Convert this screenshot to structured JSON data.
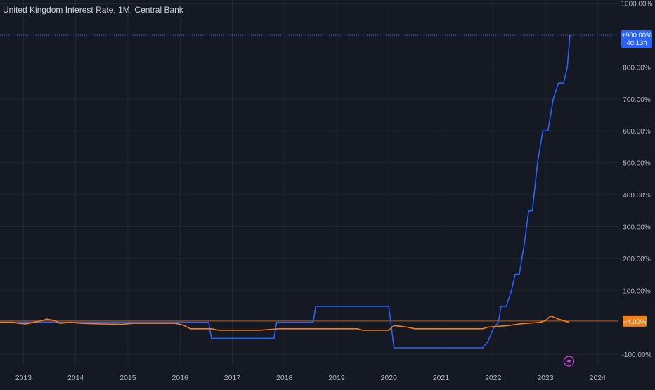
{
  "header": {
    "title": "United Kingdom Interest Rate, 1M, Central Bank"
  },
  "price_labels": {
    "top_value": "+900.00%",
    "top_countdown": "4d 13h",
    "baseline_value": "+4.00%"
  },
  "colors": {
    "background": "#151924",
    "grid": "#222631",
    "axis_text": "#b2b5be",
    "blue_series": "#2962ff",
    "orange_series": "#f57f17",
    "baseline": "#f57f17",
    "event_icon": "#d042e0"
  },
  "icons": {
    "event_marker": "lightning-icon"
  },
  "chart_data": {
    "type": "line",
    "title": "United Kingdom Interest Rate, 1M, Central Bank",
    "xlabel": "",
    "ylabel": "",
    "y_ticks": [
      "1000.00%",
      "900.00%",
      "800.00%",
      "700.00%",
      "600.00%",
      "500.00%",
      "400.00%",
      "300.00%",
      "200.00%",
      "100.00%",
      "-100.00%"
    ],
    "y_tick_values": [
      1000,
      900,
      800,
      700,
      600,
      500,
      400,
      300,
      200,
      100,
      -100
    ],
    "x_ticks": [
      "2013",
      "2014",
      "2015",
      "2016",
      "2017",
      "2018",
      "2019",
      "2020",
      "2021",
      "2022",
      "2023",
      "2024"
    ],
    "x_tick_values": [
      2013,
      2014,
      2015,
      2016,
      2017,
      2018,
      2019,
      2020,
      2021,
      2022,
      2023,
      2024
    ],
    "xlim": [
      2012.55,
      2024.4
    ],
    "ylim": [
      -135,
      1010
    ],
    "grid": true,
    "y_axis_side": "right",
    "series": [
      {
        "color": "#2962ff",
        "step": true,
        "points": [
          [
            2012.55,
            0
          ],
          [
            2016.55,
            0
          ],
          [
            2016.6,
            -50
          ],
          [
            2017.8,
            -50
          ],
          [
            2017.85,
            0
          ],
          [
            2018.55,
            0
          ],
          [
            2018.6,
            50
          ],
          [
            2020.0,
            50
          ],
          [
            2020.1,
            -80
          ],
          [
            2021.8,
            -80
          ],
          [
            2021.9,
            -60
          ],
          [
            2022.0,
            -20
          ],
          [
            2022.1,
            0
          ],
          [
            2022.15,
            50
          ],
          [
            2022.25,
            50
          ],
          [
            2022.35,
            100
          ],
          [
            2022.42,
            150
          ],
          [
            2022.5,
            150
          ],
          [
            2022.6,
            250
          ],
          [
            2022.68,
            350
          ],
          [
            2022.75,
            350
          ],
          [
            2022.85,
            500
          ],
          [
            2022.95,
            600
          ],
          [
            2023.05,
            600
          ],
          [
            2023.15,
            700
          ],
          [
            2023.25,
            750
          ],
          [
            2023.35,
            750
          ],
          [
            2023.42,
            800
          ],
          [
            2023.47,
            900
          ]
        ]
      },
      {
        "color": "#f57f17",
        "step": false,
        "points": [
          [
            2012.55,
            0
          ],
          [
            2012.8,
            0
          ],
          [
            2012.9,
            -3
          ],
          [
            2013.05,
            -5
          ],
          [
            2013.2,
            0
          ],
          [
            2013.35,
            5
          ],
          [
            2013.45,
            10
          ],
          [
            2013.6,
            5
          ],
          [
            2013.7,
            -3
          ],
          [
            2013.9,
            0
          ],
          [
            2014.1,
            -3
          ],
          [
            2014.5,
            -5
          ],
          [
            2014.9,
            -6
          ],
          [
            2015.1,
            -3
          ],
          [
            2015.9,
            -3
          ],
          [
            2016.05,
            -8
          ],
          [
            2016.2,
            -20
          ],
          [
            2016.6,
            -20
          ],
          [
            2016.75,
            -25
          ],
          [
            2017.0,
            -25
          ],
          [
            2017.5,
            -25
          ],
          [
            2017.9,
            -20
          ],
          [
            2018.5,
            -20
          ],
          [
            2019.0,
            -20
          ],
          [
            2019.4,
            -20
          ],
          [
            2019.5,
            -25
          ],
          [
            2020.0,
            -25
          ],
          [
            2020.1,
            -10
          ],
          [
            2020.35,
            -15
          ],
          [
            2020.5,
            -20
          ],
          [
            2021.8,
            -20
          ],
          [
            2021.9,
            -15
          ],
          [
            2022.3,
            -10
          ],
          [
            2022.5,
            -5
          ],
          [
            2022.9,
            0
          ],
          [
            2023.0,
            5
          ],
          [
            2023.1,
            20
          ],
          [
            2023.25,
            10
          ],
          [
            2023.45,
            0
          ]
        ]
      }
    ],
    "reference_lines": [
      {
        "y": 900,
        "style": "dotted",
        "color": "#2962ff"
      },
      {
        "y": 4,
        "style": "solid",
        "color": "#f57f17"
      }
    ],
    "event_marker": {
      "x": 2023.45,
      "icon": "lightning-icon"
    }
  }
}
